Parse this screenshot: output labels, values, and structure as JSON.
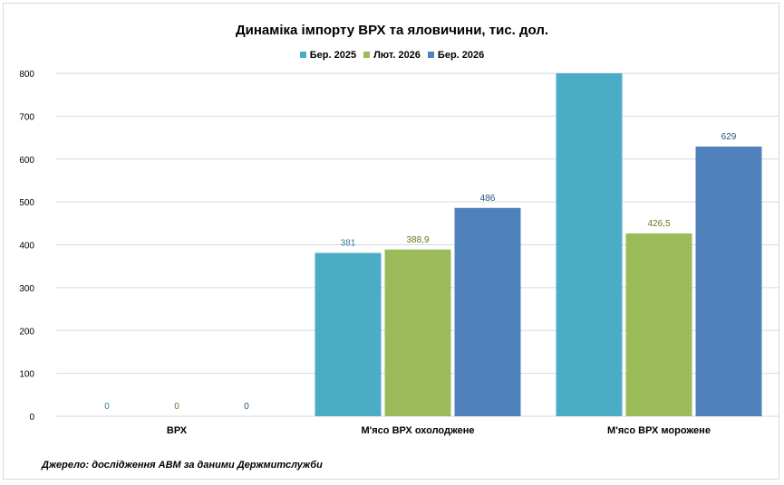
{
  "chart_data": {
    "type": "bar",
    "title": "Динаміка імпорту ВРХ та яловичини, тис. дол.",
    "categories": [
      "ВРХ",
      "М'ясо  ВРХ охолоджене",
      "М'ясо  ВРХ морожене"
    ],
    "series": [
      {
        "name": "Бер. 2025",
        "values": [
          0,
          381,
          800
        ],
        "labels": [
          "0",
          "381",
          ""
        ],
        "color": "#4bacc6",
        "label_color": "#2e7e9c"
      },
      {
        "name": "Лют. 2026",
        "values": [
          0,
          388.9,
          426.5
        ],
        "labels": [
          "0",
          "388,9",
          "426,5"
        ],
        "color": "#9bbb59",
        "label_color": "#5b7a1e"
      },
      {
        "name": "Бер. 2026",
        "values": [
          0,
          486,
          629
        ],
        "labels": [
          "0",
          "486",
          "629"
        ],
        "color": "#4f81bd",
        "label_color": "#2b4f7e"
      }
    ],
    "ylim": [
      0,
      800
    ],
    "yticks": [
      0,
      100,
      200,
      300,
      400,
      500,
      600,
      700,
      800
    ],
    "grid": true,
    "legend": "top",
    "xlabel": "",
    "ylabel": ""
  },
  "source": "Джерело: дослідження АВМ за даними Держмитслужби"
}
